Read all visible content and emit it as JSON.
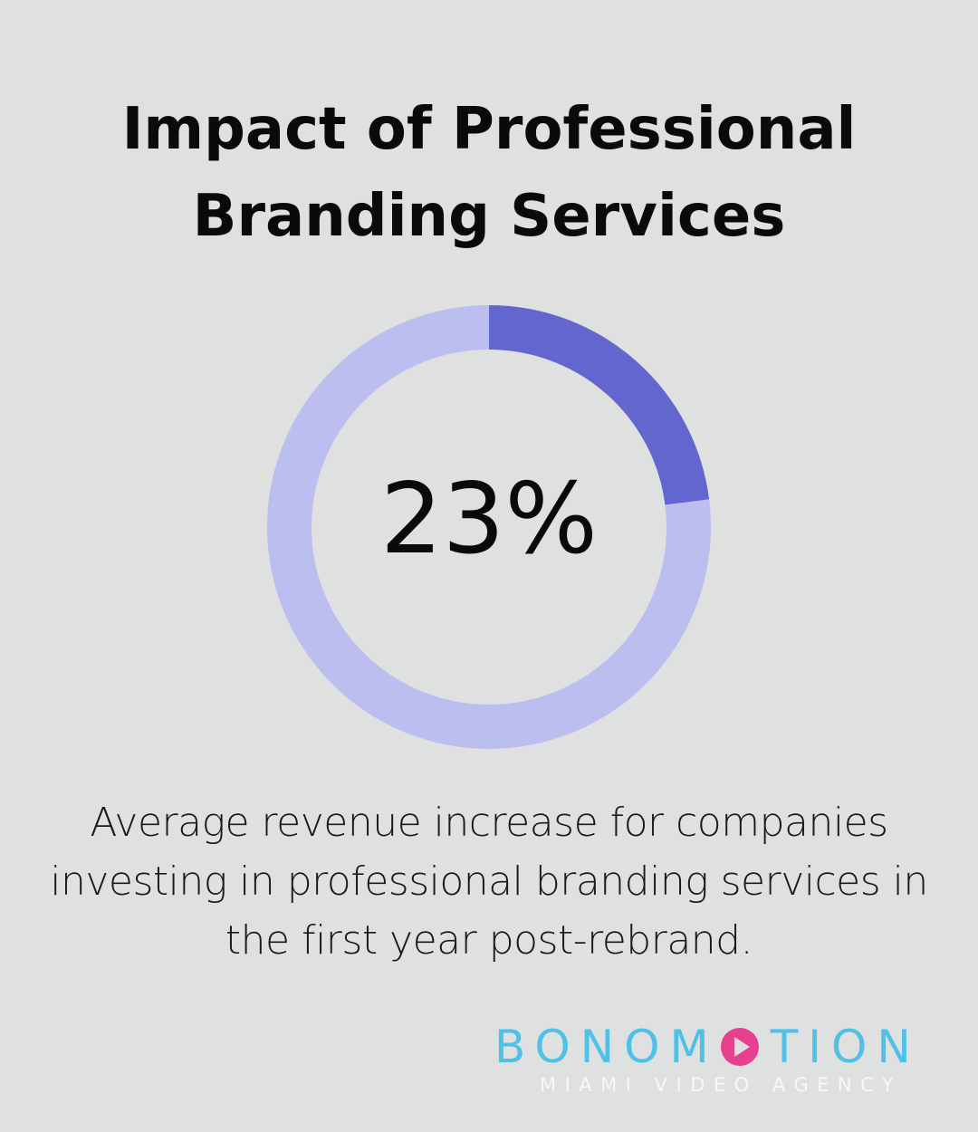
{
  "chart_data": {
    "type": "donut",
    "title": "Impact of Professional Branding Services",
    "values": [
      23
    ],
    "value_labels": [
      "23%"
    ],
    "ylim": [
      0,
      100
    ],
    "color": "#6366cf",
    "track_color": "#bcbef0",
    "description": "Average revenue increase for companies investing in professional branding services in the first year post-rebrand."
  },
  "brand": {
    "name_start": "BONOM",
    "name_end": "TION",
    "tagline": "MIAMI VIDEO AGENCY"
  }
}
